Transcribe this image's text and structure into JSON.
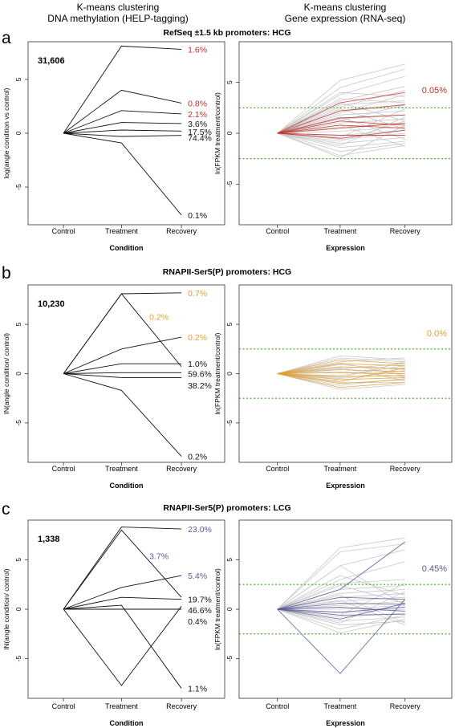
{
  "headers": {
    "left": [
      "K-means clustering",
      "DNA methylation (HELP-tagging)"
    ],
    "right": [
      "K-means clustering",
      "Gene expression (RNA-seq)"
    ]
  },
  "panels": [
    {
      "letter": "a",
      "title": "RefSeq ±1.5 kb promoters: HCG",
      "accent": "#c0322b",
      "left": {
        "count": "31,606",
        "ylabel": "log(angle condition vs control)",
        "xlabel": "Condition",
        "ylim": [
          -8.5,
          8.5
        ],
        "yticks": [
          "-5",
          "0",
          "5"
        ],
        "yticks_values": [
          -5,
          0,
          5
        ]
      },
      "right": {
        "ylabel": "ln(FPKM treatment/control)",
        "xlabel": "Expression",
        "pct": "0.05%",
        "ylim": [
          -9,
          9
        ],
        "yticks": [
          "-5",
          "0",
          "5"
        ],
        "yticks_values": [
          -5,
          0,
          5
        ],
        "thresholds": [
          2.5,
          -2.5
        ]
      }
    },
    {
      "letter": "b",
      "title": "RNAPII-Ser5(P) promoters: HCG",
      "accent": "#e0a030",
      "left": {
        "count": "10,230",
        "ylabel": "lN(angle condition/ control)",
        "xlabel": "Condition",
        "ylim": [
          -9,
          9
        ],
        "yticks": [
          "-5",
          "0",
          "5"
        ],
        "yticks_values": [
          -5,
          0,
          5
        ]
      },
      "right": {
        "ylabel": "ln(FPKM treatment/control)",
        "xlabel": "Expression",
        "pct": "0.0%",
        "ylim": [
          -9,
          9
        ],
        "yticks": [
          "-5",
          "0",
          "5"
        ],
        "yticks_values": [
          -5,
          0,
          5
        ],
        "thresholds": [
          2.5,
          -2.5
        ]
      }
    },
    {
      "letter": "c",
      "title": "RNAPII-Ser5(P) promoters: LCG",
      "accent": "#5a5a9a",
      "left": {
        "count": "1,338",
        "ylabel": "lN(angle condition/ control)",
        "xlabel": "Condition",
        "ylim": [
          -9,
          9
        ],
        "yticks": [
          "-5",
          "0",
          "5"
        ],
        "yticks_values": [
          -5,
          0,
          5
        ]
      },
      "right": {
        "ylabel": "ln(FPKM treatment/control)",
        "xlabel": "Expression",
        "pct": "0.45%",
        "ylim": [
          -9,
          9
        ],
        "yticks": [
          "-5",
          "0",
          "5"
        ],
        "yticks_values": [
          -5,
          0,
          5
        ],
        "thresholds": [
          2.5,
          -2.5
        ]
      }
    }
  ],
  "chart_data": [
    {
      "type": "line",
      "panel": "a-left",
      "x": [
        "Control",
        "Treatment",
        "Recovery"
      ],
      "xlabel": "Condition",
      "ylabel": "log(angle condition vs control)",
      "series": [
        {
          "name": "1.6%",
          "values": [
            0,
            8.1,
            7.8
          ],
          "highlight": true
        },
        {
          "name": "0.8%",
          "values": [
            0,
            4.0,
            2.8
          ],
          "highlight": true
        },
        {
          "name": "2.1%",
          "values": [
            0,
            2.1,
            1.8
          ],
          "highlight": true
        },
        {
          "name": "3.6%",
          "values": [
            0,
            1.0,
            0.9
          ],
          "highlight": false
        },
        {
          "name": "17.5%",
          "values": [
            0,
            0.3,
            0.2
          ],
          "highlight": false
        },
        {
          "name": "74.4%",
          "values": [
            0,
            -0.3,
            -0.2
          ],
          "highlight": false
        },
        {
          "name": "0.1%",
          "values": [
            0,
            -0.9,
            -7.6
          ],
          "highlight": false
        }
      ]
    },
    {
      "type": "line",
      "panel": "a-right",
      "x": [
        "Control",
        "Treatment",
        "Recovery"
      ],
      "xlabel": "Expression",
      "ylabel": "ln(FPKM treatment/control)",
      "highlighted_series": [
        [
          0,
          3.0,
          4.0
        ],
        [
          0,
          2.2,
          2.8
        ],
        [
          0,
          1.5,
          1.8
        ],
        [
          0,
          0.8,
          0.5
        ],
        [
          0,
          -0.5,
          0.3
        ],
        [
          0,
          0.5,
          1.0
        ],
        [
          0,
          -0.2,
          -0.2
        ],
        [
          0,
          1.2,
          0.8
        ]
      ],
      "background_series": [
        [
          0,
          5.2,
          6.8
        ],
        [
          0,
          4.5,
          6.3
        ],
        [
          0,
          3.8,
          5.6
        ],
        [
          0,
          3.2,
          4.6
        ],
        [
          0,
          2.6,
          4.2
        ],
        [
          0,
          4.0,
          3.6
        ],
        [
          0,
          3.4,
          3.0
        ],
        [
          0,
          2.8,
          3.2
        ],
        [
          0,
          2.2,
          2.6
        ],
        [
          0,
          1.8,
          2.2
        ],
        [
          0,
          1.4,
          1.8
        ],
        [
          0,
          1.0,
          1.4
        ],
        [
          0,
          0.6,
          1.0
        ],
        [
          0,
          0.2,
          0.6
        ],
        [
          0,
          -0.2,
          0.3
        ],
        [
          0,
          -0.6,
          0.0
        ],
        [
          0,
          -1.0,
          -0.4
        ],
        [
          0,
          -1.4,
          -0.8
        ],
        [
          0,
          -1.8,
          -1.0
        ],
        [
          0,
          -2.2,
          -1.2
        ],
        [
          0,
          1.6,
          -0.6
        ],
        [
          0,
          -1.2,
          1.6
        ],
        [
          0,
          2.4,
          0.4
        ],
        [
          0,
          -0.4,
          2.4
        ],
        [
          0,
          3.0,
          1.2
        ],
        [
          0,
          -2.4,
          0.8
        ],
        [
          0,
          0.8,
          -1.3
        ],
        [
          0,
          2.0,
          3.8
        ],
        [
          0,
          -0.8,
          1.2
        ],
        [
          0,
          1.2,
          2.8
        ]
      ]
    },
    {
      "type": "line",
      "panel": "b-left",
      "x": [
        "Control",
        "Treatment",
        "Recovery"
      ],
      "xlabel": "Condition",
      "ylabel": "lN(angle condition/ control)",
      "series": [
        {
          "name": "0.7%",
          "values": [
            0,
            8.1,
            8.2
          ],
          "highlight": true
        },
        {
          "name": "0.2%",
          "values": [
            0,
            8.1,
            0.7
          ],
          "highlight": true
        },
        {
          "name": "0.2%",
          "values": [
            0,
            2.5,
            3.7
          ],
          "highlight": true
        },
        {
          "name": "1.0%",
          "values": [
            0,
            1.0,
            1.0
          ],
          "highlight": false
        },
        {
          "name": "59.6%",
          "values": [
            0,
            0.1,
            0.1
          ],
          "highlight": false
        },
        {
          "name": "38.2%",
          "values": [
            0,
            -0.4,
            -0.4
          ],
          "highlight": false
        },
        {
          "name": "0.2%",
          "values": [
            0,
            -1.7,
            -8.4
          ],
          "highlight": false
        }
      ]
    },
    {
      "type": "line",
      "panel": "b-right",
      "x": [
        "Control",
        "Treatment",
        "Recovery"
      ],
      "xlabel": "Expression",
      "ylabel": "ln(FPKM treatment/control)",
      "highlighted_series": [
        [
          0,
          1.4,
          1.0
        ],
        [
          0,
          1.0,
          0.8
        ],
        [
          0,
          0.7,
          0.5
        ],
        [
          0,
          0.4,
          0.2
        ],
        [
          0,
          0.1,
          0.0
        ],
        [
          0,
          -0.3,
          -0.2
        ],
        [
          0,
          -0.6,
          -0.4
        ],
        [
          0,
          -1.0,
          -0.6
        ],
        [
          0,
          -1.4,
          -0.9
        ],
        [
          0,
          -0.8,
          0.6
        ]
      ],
      "background_series": [
        [
          0,
          1.8,
          1.4
        ],
        [
          0,
          1.6,
          1.2
        ],
        [
          0,
          1.2,
          1.6
        ],
        [
          0,
          0.9,
          0.4
        ],
        [
          0,
          0.5,
          1.0
        ],
        [
          0,
          0.2,
          -0.3
        ],
        [
          0,
          -0.2,
          0.8
        ],
        [
          0,
          -0.5,
          0.3
        ],
        [
          0,
          -0.9,
          -0.9
        ],
        [
          0,
          -1.2,
          -0.5
        ],
        [
          0,
          -1.6,
          -1.1
        ],
        [
          0,
          0.6,
          -0.7
        ],
        [
          0,
          -0.4,
          1.2
        ],
        [
          0,
          1.1,
          -0.2
        ]
      ]
    },
    {
      "type": "line",
      "panel": "c-left",
      "x": [
        "Control",
        "Treatment",
        "Recovery"
      ],
      "xlabel": "Condition",
      "ylabel": "lN(angle condition/ control)",
      "series": [
        {
          "name": "23.0%",
          "values": [
            0,
            8.3,
            8.1
          ],
          "highlight": true
        },
        {
          "name": "3.7%",
          "values": [
            0,
            8.0,
            1.2
          ],
          "highlight": true
        },
        {
          "name": "5.4%",
          "values": [
            0,
            2.2,
            3.4
          ],
          "highlight": true
        },
        {
          "name": "19.7%",
          "values": [
            0,
            1.2,
            1.0
          ],
          "highlight": false
        },
        {
          "name": "46.6%",
          "values": [
            0,
            0.0,
            0.0
          ],
          "highlight": false
        },
        {
          "name": "0.4%",
          "values": [
            0,
            -7.7,
            0.3
          ],
          "highlight": false
        },
        {
          "name": "1.1%",
          "values": [
            0,
            0.4,
            -8.0
          ],
          "highlight": false
        }
      ]
    },
    {
      "type": "line",
      "panel": "c-right",
      "x": [
        "Control",
        "Treatment",
        "Recovery"
      ],
      "xlabel": "Expression",
      "ylabel": "ln(FPKM treatment/control)",
      "highlighted_series": [
        [
          0,
          2.0,
          6.8
        ],
        [
          0,
          1.2,
          1.0
        ],
        [
          0,
          0.6,
          0.5
        ],
        [
          0,
          0.2,
          -0.2
        ],
        [
          0,
          -0.3,
          0.2
        ],
        [
          0,
          -0.6,
          -0.5
        ],
        [
          0,
          -1.0,
          0.6
        ],
        [
          0,
          -6.5,
          1.0
        ]
      ],
      "background_series": [
        [
          0,
          6.2,
          7.2
        ],
        [
          0,
          5.8,
          6.6
        ],
        [
          0,
          4.4,
          6.0
        ],
        [
          0,
          4.4,
          0.4
        ],
        [
          0,
          3.0,
          4.8
        ],
        [
          0,
          2.6,
          3.0
        ],
        [
          0,
          2.0,
          2.4
        ],
        [
          0,
          1.6,
          2.0
        ],
        [
          0,
          1.2,
          1.6
        ],
        [
          0,
          0.8,
          1.2
        ],
        [
          0,
          0.4,
          0.8
        ],
        [
          0,
          0.0,
          0.4
        ],
        [
          0,
          -0.4,
          0.0
        ],
        [
          0,
          -0.8,
          -0.4
        ],
        [
          0,
          -1.2,
          -0.8
        ],
        [
          0,
          -1.6,
          -1.2
        ],
        [
          0,
          -2.0,
          -0.6
        ],
        [
          0,
          -2.4,
          -1.0
        ],
        [
          0,
          1.4,
          -1.4
        ],
        [
          0,
          -1.4,
          1.8
        ],
        [
          0,
          2.4,
          0.6
        ],
        [
          0,
          -0.6,
          2.6
        ],
        [
          0,
          3.4,
          1.4
        ],
        [
          0,
          0.9,
          -1.6
        ]
      ]
    }
  ]
}
